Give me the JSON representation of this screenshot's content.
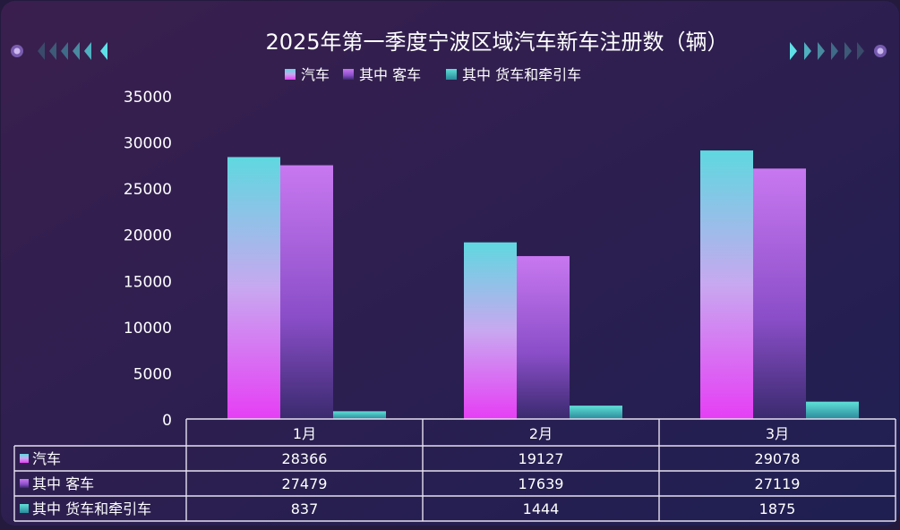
{
  "chart_data": {
    "type": "bar",
    "title": "2025年第一季度宁波区域汽车新车注册数（辆）",
    "categories": [
      "1月",
      "2月",
      "3月"
    ],
    "series": [
      {
        "name": "汽车",
        "values": [
          28366,
          19127,
          29078
        ]
      },
      {
        "name": "其中  客车",
        "values": [
          27479,
          17639,
          27119
        ]
      },
      {
        "name": "其中  货车和牵引车",
        "values": [
          837,
          1444,
          1875
        ]
      }
    ],
    "yticks": [
      "35000",
      "30000",
      "25000",
      "20000",
      "15000",
      "10000",
      "5000",
      "0"
    ],
    "ylim": [
      0,
      35000
    ],
    "legend": "top",
    "data_table": true,
    "colors": {
      "series1_top": "#5fd8e0",
      "series1_bottom": "#e63ef5",
      "series2_top": "#c878f0",
      "series2_bottom": "#3a2a6e",
      "series3_top": "#5fe0d8",
      "series3_bottom": "#2a8a9a"
    }
  }
}
